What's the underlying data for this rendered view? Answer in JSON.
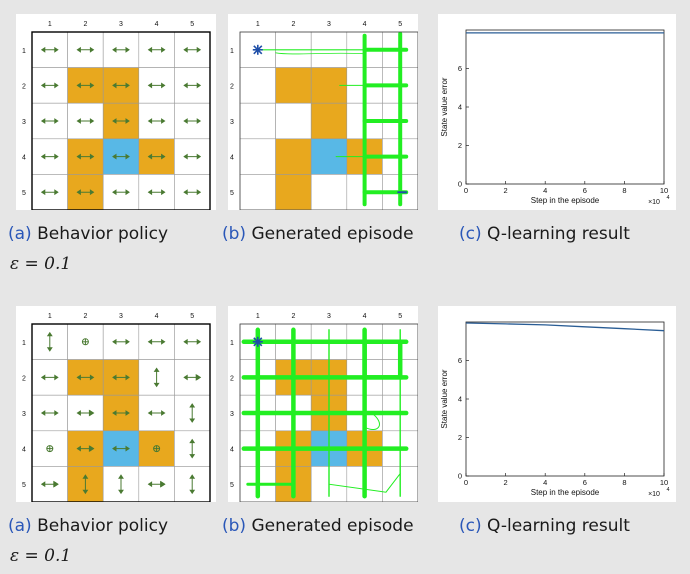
{
  "colors": {
    "obstacle": "#e8a81e",
    "target": "#58b8e6",
    "arrow": "#4a7a32",
    "path": "#22ee22",
    "caption_tag": "#2a57b8",
    "curve": "#2a5d95"
  },
  "grid": {
    "col_labels": [
      "1",
      "2",
      "3",
      "4",
      "5"
    ],
    "row_labels": [
      "1",
      "2",
      "3",
      "4",
      "5"
    ],
    "obstacles": [
      [
        2,
        2
      ],
      [
        2,
        3
      ],
      [
        3,
        3
      ],
      [
        4,
        2
      ],
      [
        4,
        4
      ],
      [
        5,
        2
      ]
    ],
    "target": [
      4,
      3
    ]
  },
  "rows": [
    {
      "policy_icons": [
        [
          "h",
          "h",
          "h",
          "h",
          "h"
        ],
        [
          "h",
          "h",
          "h",
          "h",
          "h"
        ],
        [
          "h",
          "h",
          "h",
          "h",
          "h"
        ],
        [
          "h",
          "h",
          "h",
          "h",
          "h"
        ],
        [
          "h",
          "h",
          "h",
          "h",
          "h"
        ]
      ],
      "episode_start_marker": "asterisk",
      "captions": {
        "a_tag": "(a)",
        "a_text": "Behavior policy",
        "b_tag": "(b)",
        "b_text": "Generated episode",
        "c_tag": "(c)",
        "c_text": "Q-learning result"
      },
      "epsilon": "ε = 0.1",
      "chart_data": {
        "type": "line",
        "xlabel": "Step in the episode",
        "ylabel": "State value error",
        "x_multiplier": "×10",
        "x_multiplier_exp": "4",
        "xlim": [
          0,
          10
        ],
        "ylim": [
          0,
          8
        ],
        "xticks": [
          "0",
          "2",
          "4",
          "6",
          "8",
          "10"
        ],
        "yticks": [
          "0",
          "2",
          "4",
          "6"
        ],
        "series": [
          {
            "x": [
              0,
              10
            ],
            "y": [
              7.85,
              7.85
            ]
          }
        ]
      }
    },
    {
      "policy_icons": [
        [
          "v",
          "o",
          "h",
          "h",
          "h"
        ],
        [
          "h",
          "h",
          "h",
          "v",
          "hr"
        ],
        [
          "h",
          "hr",
          "h",
          "h",
          "v"
        ],
        [
          "o",
          "hr",
          "h",
          "o",
          "v"
        ],
        [
          "hr",
          "v",
          "v",
          "hr",
          "v"
        ]
      ],
      "episode_start_marker": "asterisk",
      "captions": {
        "a_tag": "(a)",
        "a_text": "Behavior policy",
        "b_tag": "(b)",
        "b_text": "Generated episode",
        "c_tag": "(c)",
        "c_text": "Q-learning result"
      },
      "epsilon": "ε = 0.1",
      "chart_data": {
        "type": "line",
        "xlabel": "Step in the episode",
        "ylabel": "State value error",
        "x_multiplier": "×10",
        "x_multiplier_exp": "4",
        "xlim": [
          0,
          10
        ],
        "ylim": [
          0,
          8
        ],
        "xticks": [
          "0",
          "2",
          "4",
          "6",
          "8",
          "10"
        ],
        "yticks": [
          "0",
          "2",
          "4",
          "6"
        ],
        "series": [
          {
            "x": [
              0,
              2,
              4,
              6,
              8,
              10
            ],
            "y": [
              7.95,
              7.9,
              7.85,
              7.75,
              7.65,
              7.55
            ]
          }
        ]
      }
    }
  ]
}
